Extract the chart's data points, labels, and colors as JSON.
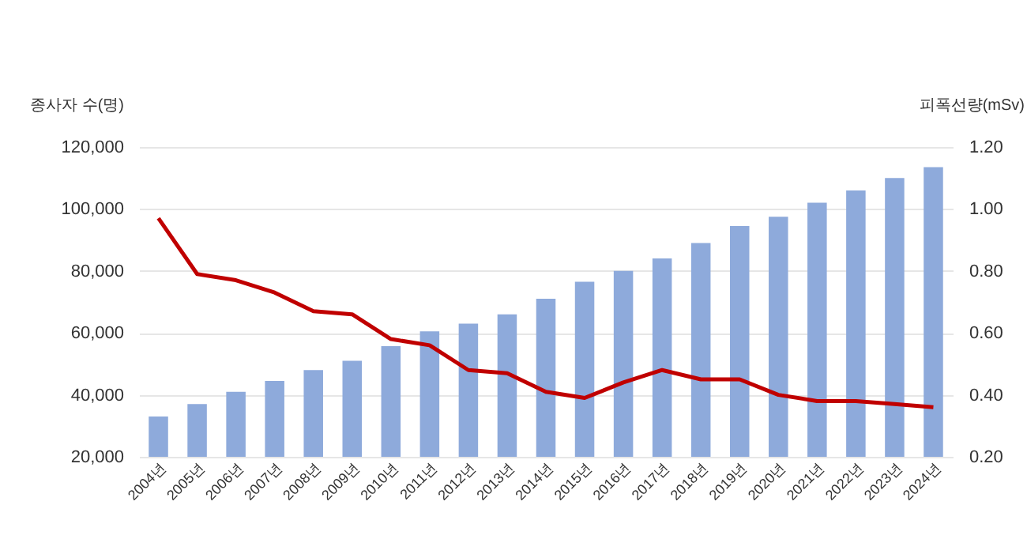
{
  "chart_data": {
    "type": "bar",
    "ylabel": "종사자 수(명)",
    "y2label": "피폭선량(mSv)",
    "categories": [
      "2004년",
      "2005년",
      "2006년",
      "2007년",
      "2008년",
      "2009년",
      "2010년",
      "2011년",
      "2012년",
      "2013년",
      "2014년",
      "2015년",
      "2016년",
      "2017년",
      "2018년",
      "2019년",
      "2020년",
      "2021년",
      "2022년",
      "2023년",
      "2024년"
    ],
    "series": [
      {
        "color": "#8eaadb",
        "values": [
          33000,
          37000,
          41000,
          44500,
          48000,
          51000,
          55700,
          60500,
          63000,
          66000,
          71000,
          76500,
          80000,
          84000,
          89000,
          94500,
          97500,
          102000,
          106000,
          110000,
          113500
        ]
      },
      {
        "type": "line",
        "axis": "y2",
        "color": "#c00000",
        "values": [
          0.97,
          0.79,
          0.77,
          0.73,
          0.67,
          0.66,
          0.58,
          0.56,
          0.48,
          0.47,
          0.41,
          0.39,
          0.44,
          0.48,
          0.45,
          0.45,
          0.4,
          0.38,
          0.38,
          0.37,
          0.36
        ]
      }
    ],
    "ylim": [
      20000,
      120000
    ],
    "yticks": [
      {
        "value": 20000,
        "label": "20,000"
      },
      {
        "value": 40000,
        "label": "40,000"
      },
      {
        "value": 60000,
        "label": "60,000"
      },
      {
        "value": 80000,
        "label": "80,000"
      },
      {
        "value": 100000,
        "label": "100,000"
      },
      {
        "value": 120000,
        "label": "120,000"
      }
    ],
    "y2lim": [
      0.2,
      1.2
    ],
    "y2ticks": [
      {
        "value": 0.2,
        "label": "0.20"
      },
      {
        "value": 0.4,
        "label": "0.40"
      },
      {
        "value": 0.6,
        "label": "0.60"
      },
      {
        "value": 0.8,
        "label": "0.80"
      },
      {
        "value": 1.0,
        "label": "1.00"
      },
      {
        "value": 1.2,
        "label": "1.20"
      }
    ],
    "grid": "y",
    "marker": "none",
    "line_style": "solid"
  }
}
